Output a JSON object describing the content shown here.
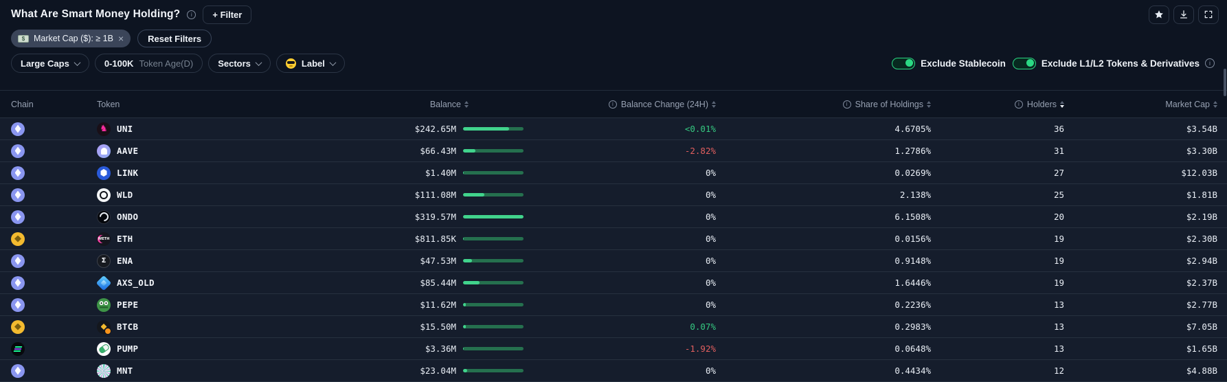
{
  "page": {
    "title": "What Are Smart Money Holding?",
    "filter_button": "+ Filter",
    "chip": {
      "label": "Market Cap ($): ≥ 1B",
      "icon": "money-banknote-icon"
    },
    "reset_filters": "Reset Filters",
    "toolbar_icons": [
      "star-icon",
      "download-icon",
      "fullscreen-icon"
    ]
  },
  "filters": {
    "size_selector": "Large Caps",
    "token_age_value": "0-100K",
    "token_age_unit": "Token Age(D)",
    "sectors": "Sectors",
    "label_selector": "Label",
    "label_icon": "smart-money-emoji-icon",
    "exclude_stablecoin": {
      "label": "Exclude Stablecoin",
      "enabled": true
    },
    "exclude_l1l2": {
      "label": "Exclude L1/L2 Tokens & Derivatives",
      "enabled": true
    }
  },
  "table": {
    "sorted_by": "Holders",
    "sort_direction": "desc",
    "columns": [
      {
        "label": "Chain",
        "align": "left",
        "sortable": false,
        "info": false
      },
      {
        "label": "Token",
        "align": "left",
        "sortable": false,
        "info": false
      },
      {
        "label": "Balance",
        "align": "right",
        "sortable": true,
        "info": false
      },
      {
        "label": "Balance Change (24H)",
        "align": "right",
        "sortable": true,
        "info": true
      },
      {
        "label": "Share of Holdings",
        "align": "right",
        "sortable": true,
        "info": true
      },
      {
        "label": "Holders",
        "align": "right",
        "sortable": true,
        "info": true,
        "sorted": "desc"
      },
      {
        "label": "Market Cap",
        "align": "right",
        "sortable": true,
        "info": false
      }
    ],
    "rows": [
      {
        "chain": "ethereum",
        "token": "UNI",
        "balance": "$242.65M",
        "balance_fill_pct": 76,
        "change": "<0.01%",
        "change_dir": "up",
        "share": "4.6705%",
        "holders": "36",
        "market_cap": "$3.54B"
      },
      {
        "chain": "ethereum",
        "token": "AAVE",
        "balance": "$66.43M",
        "balance_fill_pct": 21,
        "change": "-2.82%",
        "change_dir": "down",
        "share": "1.2786%",
        "holders": "31",
        "market_cap": "$3.30B"
      },
      {
        "chain": "ethereum",
        "token": "LINK",
        "balance": "$1.40M",
        "balance_fill_pct": 1,
        "change": "0%",
        "change_dir": "flat",
        "share": "0.0269%",
        "holders": "27",
        "market_cap": "$12.03B"
      },
      {
        "chain": "ethereum",
        "token": "WLD",
        "balance": "$111.08M",
        "balance_fill_pct": 35,
        "change": "0%",
        "change_dir": "flat",
        "share": "2.138%",
        "holders": "25",
        "market_cap": "$1.81B"
      },
      {
        "chain": "ethereum",
        "token": "ONDO",
        "balance": "$319.57M",
        "balance_fill_pct": 100,
        "change": "0%",
        "change_dir": "flat",
        "share": "6.1508%",
        "holders": "20",
        "market_cap": "$2.19B"
      },
      {
        "chain": "bnb",
        "token": "ETH",
        "balance": "$811.85K",
        "balance_fill_pct": 1,
        "change": "0%",
        "change_dir": "flat",
        "share": "0.0156%",
        "holders": "19",
        "market_cap": "$2.30B"
      },
      {
        "chain": "ethereum",
        "token": "ENA",
        "balance": "$47.53M",
        "balance_fill_pct": 15,
        "change": "0%",
        "change_dir": "flat",
        "share": "0.9148%",
        "holders": "19",
        "market_cap": "$2.94B"
      },
      {
        "chain": "ethereum",
        "token": "AXS_OLD",
        "balance": "$85.44M",
        "balance_fill_pct": 27,
        "change": "0%",
        "change_dir": "flat",
        "share": "1.6446%",
        "holders": "19",
        "market_cap": "$2.37B"
      },
      {
        "chain": "ethereum",
        "token": "PEPE",
        "balance": "$11.62M",
        "balance_fill_pct": 4,
        "change": "0%",
        "change_dir": "flat",
        "share": "0.2236%",
        "holders": "13",
        "market_cap": "$2.77B"
      },
      {
        "chain": "bnb",
        "token": "BTCB",
        "balance": "$15.50M",
        "balance_fill_pct": 5,
        "change": "0.07%",
        "change_dir": "up",
        "share": "0.2983%",
        "holders": "13",
        "market_cap": "$7.05B"
      },
      {
        "chain": "solana",
        "token": "PUMP",
        "balance": "$3.36M",
        "balance_fill_pct": 1,
        "change": "-1.92%",
        "change_dir": "down",
        "share": "0.0648%",
        "holders": "13",
        "market_cap": "$1.65B"
      },
      {
        "chain": "ethereum",
        "token": "MNT",
        "balance": "$23.04M",
        "balance_fill_pct": 7,
        "change": "0%",
        "change_dir": "flat",
        "share": "0.4434%",
        "holders": "12",
        "market_cap": "$4.88B"
      }
    ]
  },
  "colors": {
    "background": "#0d1421",
    "row_background": "#151d2c",
    "accent_green": "#2bd984",
    "positive_green": "#35c981",
    "negative_red": "#e25f5f",
    "bar_fill": "#41d38c",
    "bar_track": "#25704e"
  }
}
